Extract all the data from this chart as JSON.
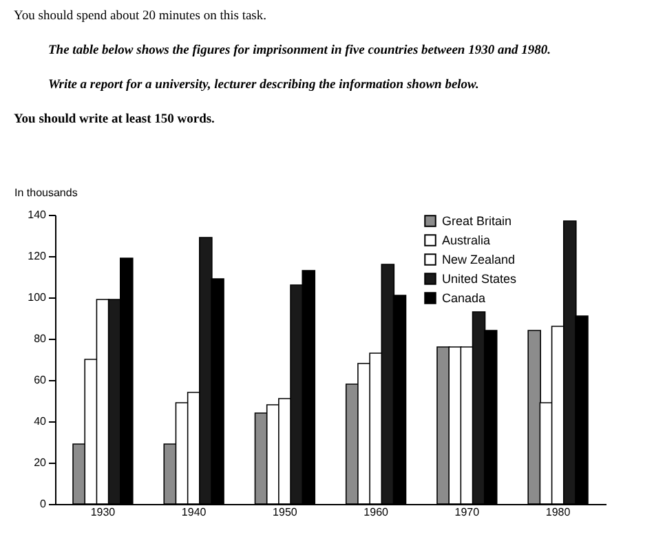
{
  "chart_data": {
    "type": "bar",
    "ylabel": "In thousands",
    "annotations": [
      "You should spend about 20 minutes on this task.",
      "The table below shows the figures for imprisonment in five countries between 1930 and 1980.",
      "Write a report for a university, lecturer describing the information shown below.",
      "You should write at least 150 words."
    ],
    "categories": [
      "1930",
      "1940",
      "1950",
      "1960",
      "1970",
      "1980"
    ],
    "series": [
      {
        "name": "Great Britain",
        "color": "#8c8c8c",
        "values": [
          29,
          29,
          44,
          58,
          76,
          84
        ]
      },
      {
        "name": "Australia",
        "color": "#ffffff",
        "values": [
          70,
          49,
          48,
          68,
          76,
          49
        ]
      },
      {
        "name": "New Zealand",
        "color": "#ffffff",
        "values": [
          99,
          54,
          51,
          73,
          76,
          86
        ]
      },
      {
        "name": "United States",
        "color": "#1a1a1a",
        "values": [
          99,
          129,
          106,
          116,
          93,
          137
        ]
      },
      {
        "name": "Canada",
        "color": "#000000",
        "values": [
          119,
          109,
          113,
          101,
          84,
          91
        ]
      }
    ],
    "ylim": [
      0,
      140
    ],
    "yticks": [
      0,
      20,
      40,
      60,
      80,
      100,
      120,
      140
    ],
    "grid": false,
    "legend": "top right"
  }
}
